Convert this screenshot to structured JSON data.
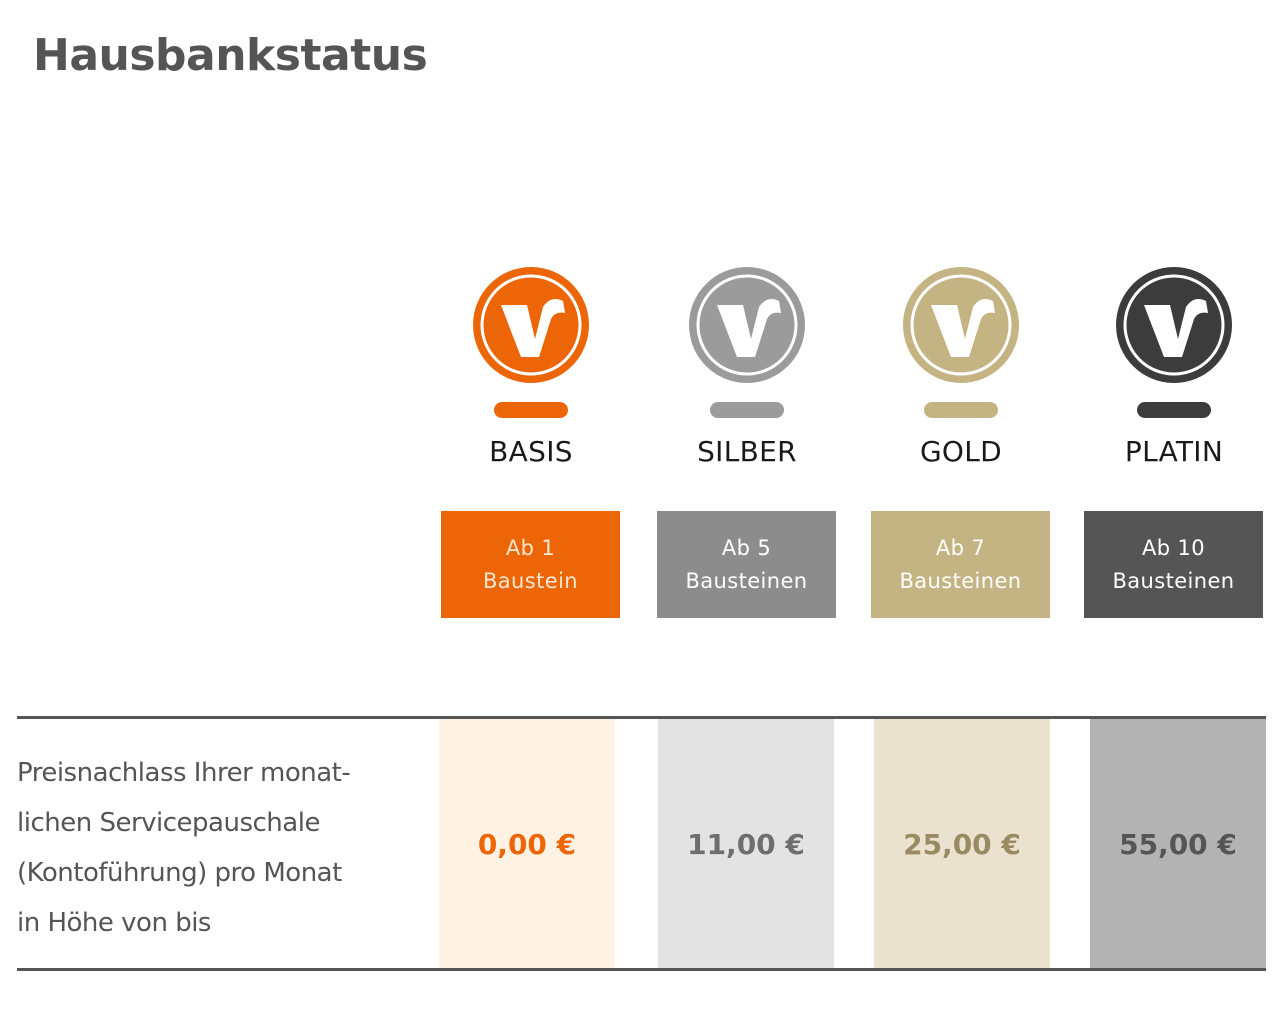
{
  "title": "Hausbankstatus",
  "tiers": [
    {
      "name": "BASIS",
      "threshold_line1": "Ab 1",
      "threshold_line2": "Baustein",
      "discount": "0,00 €",
      "color": "#EC6608",
      "cell_bg": "#FDF2E4",
      "price_color": "#EC6608",
      "box_text_color": "#FFE7D4",
      "icon": "volksbank-v-logo-icon"
    },
    {
      "name": "SILBER",
      "threshold_line1": "Ab 5",
      "threshold_line2": "Bausteinen",
      "discount": "11,00 €",
      "color": "#8C8C8C",
      "cell_bg": "#E3E3E3",
      "price_color": "#6E6E6E",
      "box_text_color": "#FFFFFF",
      "icon": "volksbank-v-logo-icon"
    },
    {
      "name": "GOLD",
      "threshold_line1": "Ab 7",
      "threshold_line2": "Bausteinen",
      "discount": "25,00 €",
      "color": "#C4B383",
      "cell_bg": "#EAE2CE",
      "price_color": "#9A8A63",
      "box_text_color": "#FFFFFF",
      "icon": "volksbank-v-logo-icon"
    },
    {
      "name": "PLATIN",
      "threshold_line1": "Ab 10",
      "threshold_line2": "Bausteinen",
      "discount": "55,00 €",
      "color": "#555555",
      "cell_bg": "#B3B3B3",
      "price_color": "#555555",
      "box_text_color": "#FFFFFF",
      "icon": "volksbank-v-logo-icon"
    }
  ],
  "description": {
    "line1": "Preisnachlass Ihrer monat-",
    "line2": "lichen Servicepauschale",
    "line3": "(Kontoführung) pro Monat",
    "line4": "in Höhe von bis"
  }
}
